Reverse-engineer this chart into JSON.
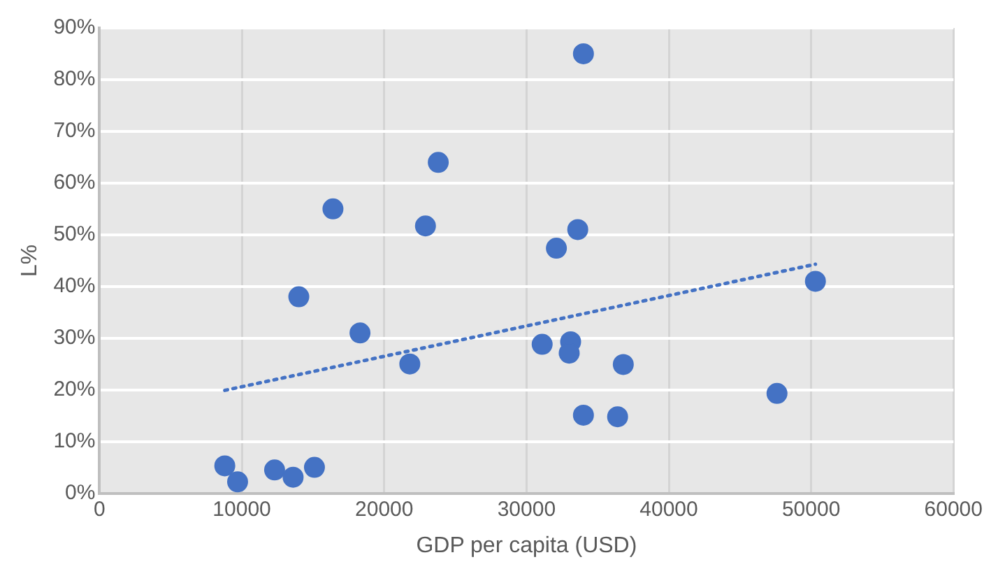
{
  "chart_data": {
    "type": "scatter",
    "xlabel": "GDP per capita (USD)",
    "ylabel": "L%",
    "xlim": [
      0,
      60000
    ],
    "xticks": [
      0,
      10000,
      20000,
      30000,
      40000,
      50000,
      60000
    ],
    "ylim": [
      0,
      90
    ],
    "yticks": [
      {
        "value": 0,
        "label": "0%"
      },
      {
        "value": 10,
        "label": "10%"
      },
      {
        "value": 20,
        "label": "20%"
      },
      {
        "value": 30,
        "label": "30%"
      },
      {
        "value": 40,
        "label": "40%"
      },
      {
        "value": 50,
        "label": "50%"
      },
      {
        "value": 60,
        "label": "60%"
      },
      {
        "value": 70,
        "label": "70%"
      },
      {
        "value": 80,
        "label": "80%"
      },
      {
        "value": 90,
        "label": "90%"
      }
    ],
    "grid": true,
    "marker": "circle",
    "series": [
      {
        "color": "#4472c4",
        "x": [
          8800,
          9700,
          12300,
          13600,
          15100,
          14000,
          16400,
          18300,
          21800,
          22900,
          23800,
          31100,
          32100,
          33100,
          33000,
          33600,
          34000,
          34000,
          36800,
          36400,
          47600,
          50300
        ],
        "values": [
          5.3,
          2.2,
          4.5,
          3.1,
          5.0,
          38,
          55,
          31,
          25,
          51.7,
          64,
          28.8,
          47.4,
          29.3,
          27.1,
          51,
          85,
          15.1,
          24.9,
          14.8,
          19.3,
          41
        ]
      },
      {
        "type": "line",
        "color": "#4472c4",
        "line_style": "dotted",
        "marker": "none",
        "x": [
          8800,
          50300
        ],
        "values": [
          19.9,
          44.3
        ]
      }
    ]
  }
}
